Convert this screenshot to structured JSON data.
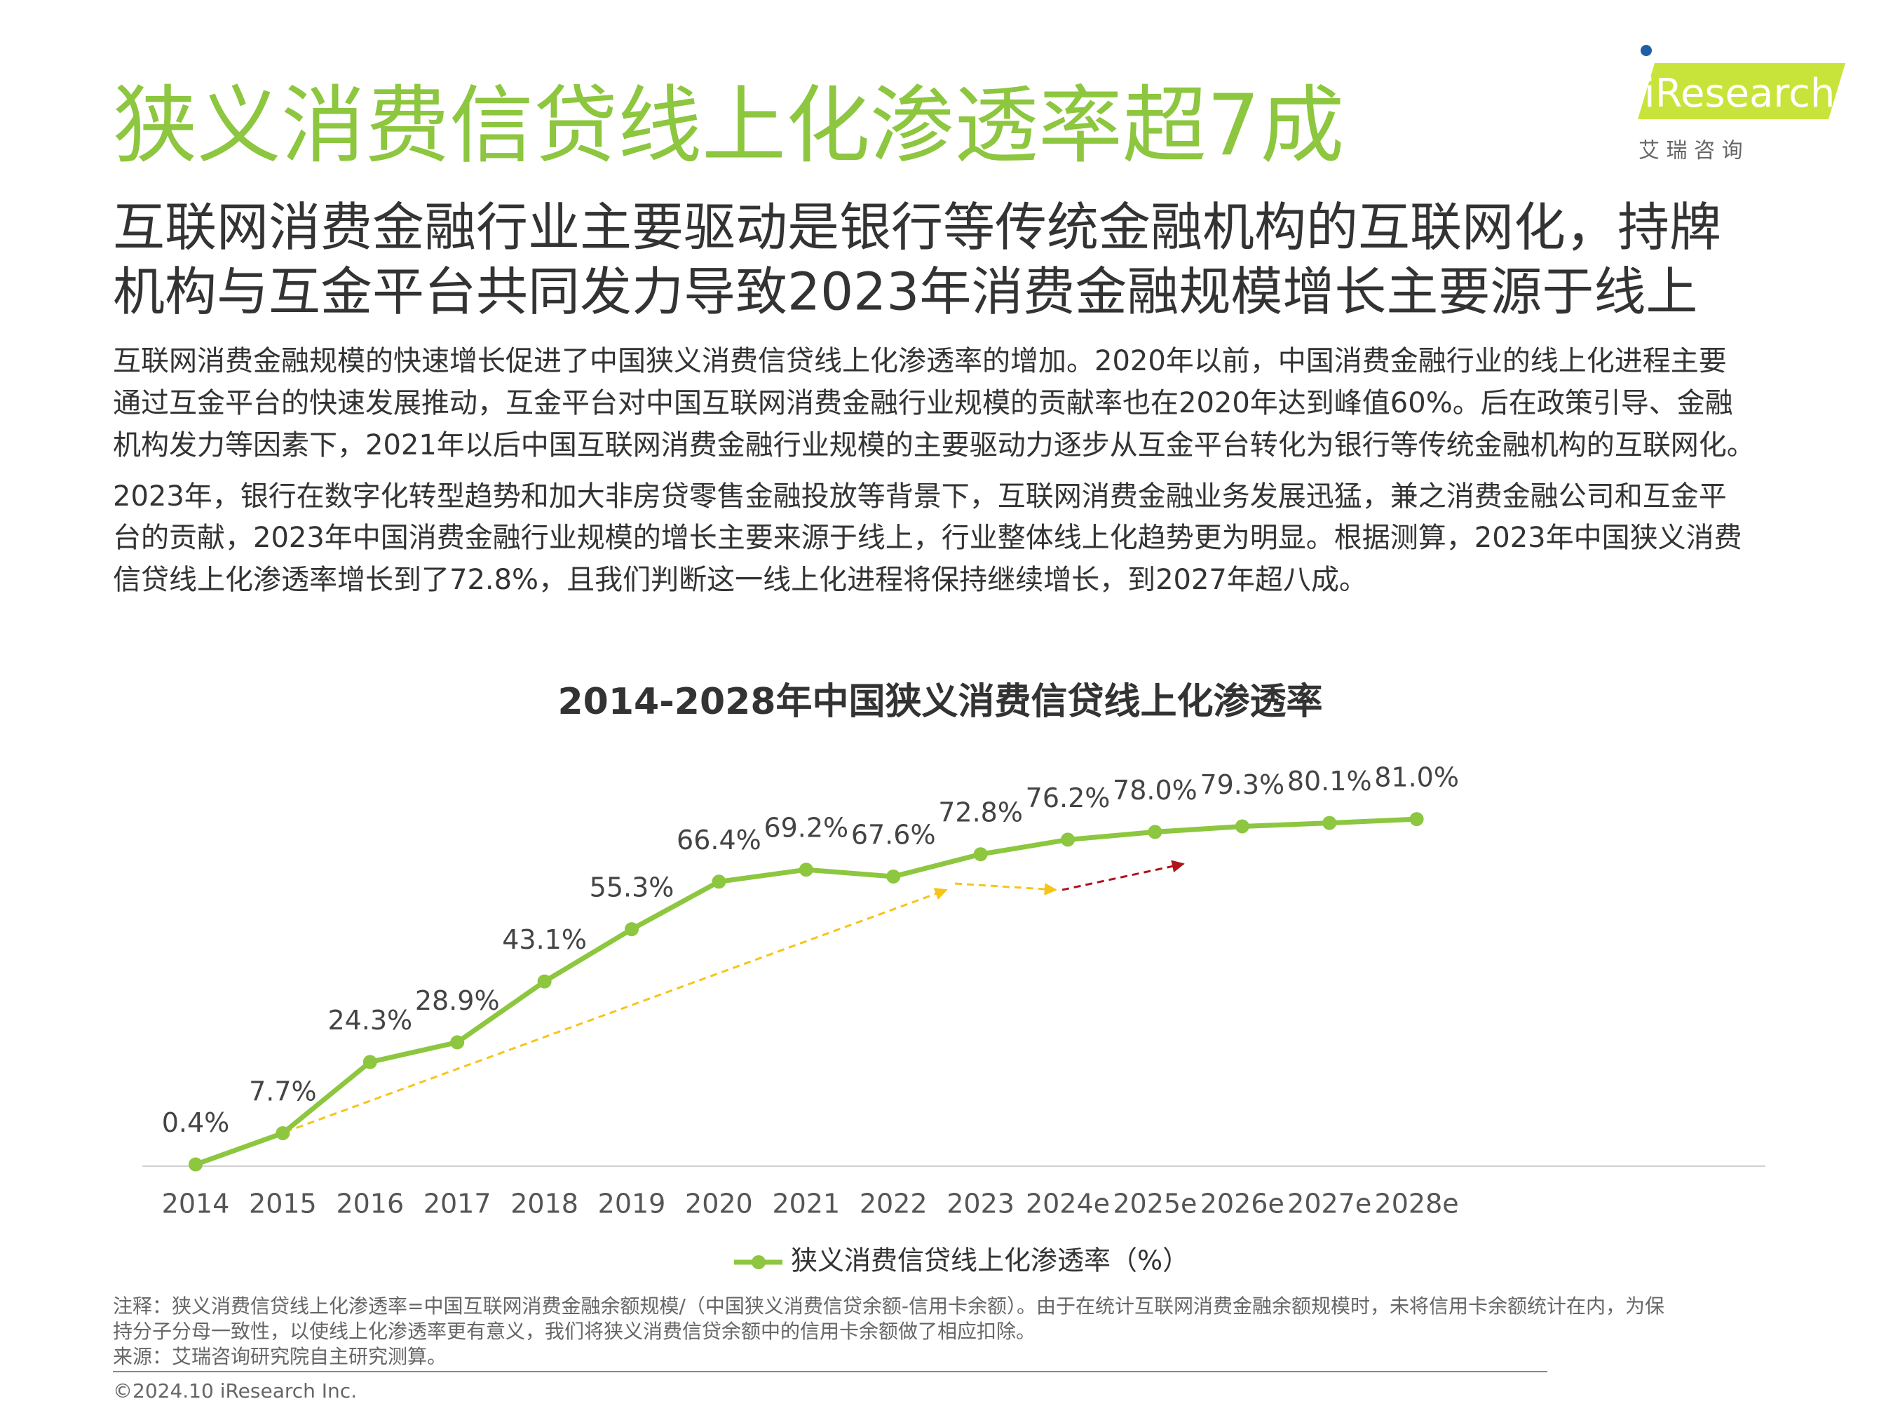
{
  "header": {
    "title": "狭义消费信贷线上化渗透率超7成",
    "subtitle": [
      "互联网消费金融行业主要驱动是银行等传统金融机构的互联网化，持牌",
      "机构与互金平台共同发力导致2023年消费金融规模增长主要源于线上"
    ],
    "logo": "iResearch",
    "logo_cn": "艾 瑞 咨 询"
  },
  "body": [
    [
      "互联网消费金融规模的快速增长促进了中国狭义消费信贷线上化渗透率的增加。2020年以前，中国消费金融行业的线上化进程主要",
      "通过互金平台的快速发展推动，互金平台对中国互联网消费金融行业规模的贡献率也在2020年达到峰值60%。后在政策引导、金融",
      "机构发力等因素下，2021年以后中国互联网消费金融行业规模的主要驱动力逐步从互金平台转化为银行等传统金融机构的互联网化。"
    ],
    [
      "2023年，银行在数字化转型趋势和加大非房贷零售金融投放等背景下，互联网消费金融业务发展迅猛，兼之消费金融公司和互金平",
      "台的贡献，2023年中国消费金融行业规模的增长主要来源于线上，行业整体线上化趋势更为明显。根据测算，2023年中国狭义消费",
      "信贷线上化渗透率增长到了72.8%，且我们判断这一线上化进程将保持继续增长，到2027年超八成。"
    ]
  ],
  "chart_data": {
    "type": "line",
    "title": "2014-2028年中国狭义消费信贷线上化渗透率",
    "categories": [
      "2014",
      "2015",
      "2016",
      "2017",
      "2018",
      "2019",
      "2020",
      "2021",
      "2022",
      "2023",
      "2024e",
      "2025e",
      "2026e",
      "2027e",
      "2028e"
    ],
    "series": [
      {
        "name": "狭义消费信贷线上化渗透率（%）",
        "color": "#8dc63f",
        "values": [
          0.4,
          7.7,
          24.3,
          28.9,
          43.1,
          55.3,
          66.4,
          69.2,
          67.6,
          72.8,
          76.2,
          78.0,
          79.3,
          80.1,
          81.0
        ],
        "value_labels": [
          "0.4%",
          "7.7%",
          "24.3%",
          "28.9%",
          "43.1%",
          "55.3%",
          "66.4%",
          "69.2%",
          "67.6%",
          "72.8%",
          "76.2%",
          "78.0%",
          "79.3%",
          "80.1%",
          "81.0%"
        ]
      }
    ],
    "ylim": [
      0,
      100
    ]
  },
  "footer": {
    "notes": [
      "注释：狭义消费信贷线上化渗透率=中国互联网消费金融余额规模/（中国狭义消费信贷余额-信用卡余额）。由于在统计互联网消费金融余额规模时，未将信用卡余额统计在内，为保",
      "持分子分母一致性，以使线上化渗透率更有意义，我们将狭义消费信贷余额中的信用卡余额做了相应扣除。",
      "来源：艾瑞咨询研究院自主研究测算。"
    ],
    "copyright": "©2024.10 iResearch Inc."
  }
}
